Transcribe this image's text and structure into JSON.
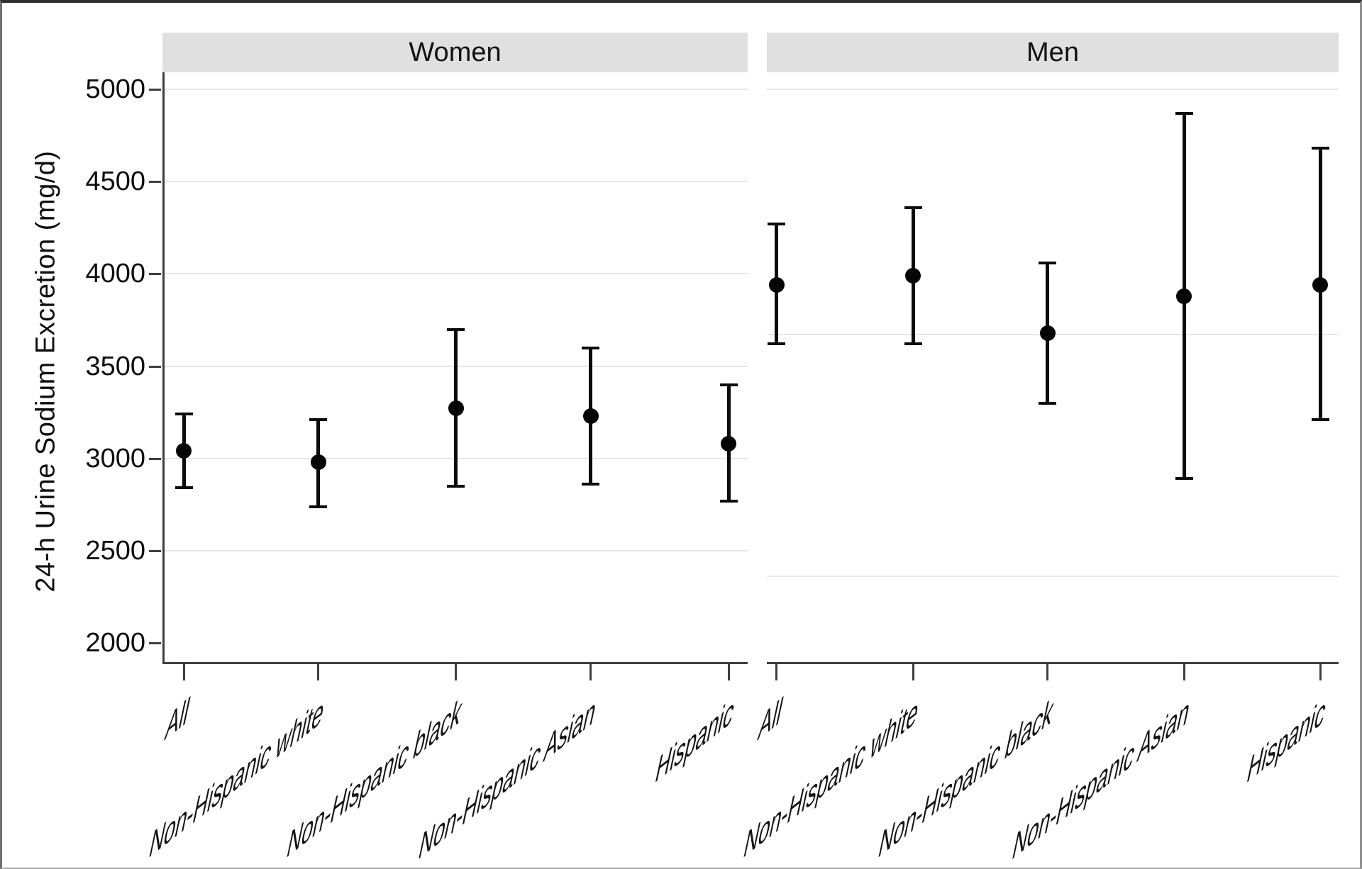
{
  "chart_data": {
    "type": "scatter",
    "subtype": "point-estimates-with-95ci-error-bars",
    "title": "",
    "xlabel": "",
    "ylabel": "24-h Urine Sodium Excretion (mg/d)",
    "ylim": [
      1900,
      5100
    ],
    "yticks": [
      5000,
      4500,
      4000,
      3500,
      3000,
      2500,
      2000
    ],
    "grid": "horizontal light gray lines",
    "legend": "none",
    "categories": [
      "All",
      "Non-Hispanic white",
      "Non-Hispanic black",
      "Non-Hispanic Asian",
      "Hispanic"
    ],
    "panels": [
      {
        "label": "Women",
        "gridlines": [
          5000,
          4500,
          4000,
          3500,
          3000,
          2500
        ],
        "series": [
          {
            "category": "All",
            "estimate": 3040,
            "ci_lower": 2840,
            "ci_upper": 3240
          },
          {
            "category": "Non-Hispanic white",
            "estimate": 2980,
            "ci_lower": 2740,
            "ci_upper": 3210
          },
          {
            "category": "Non-Hispanic black",
            "estimate": 3270,
            "ci_lower": 2850,
            "ci_upper": 3700
          },
          {
            "category": "Non-Hispanic Asian",
            "estimate": 3230,
            "ci_lower": 2860,
            "ci_upper": 3600
          },
          {
            "category": "Hispanic",
            "estimate": 3080,
            "ci_lower": 2770,
            "ci_upper": 3400
          }
        ]
      },
      {
        "label": "Men",
        "gridlines": [
          5000,
          3670,
          2360
        ],
        "series": [
          {
            "category": "All",
            "estimate": 3940,
            "ci_lower": 3620,
            "ci_upper": 4270
          },
          {
            "category": "Non-Hispanic white",
            "estimate": 3990,
            "ci_lower": 3620,
            "ci_upper": 4360
          },
          {
            "category": "Non-Hispanic black",
            "estimate": 3680,
            "ci_lower": 3300,
            "ci_upper": 4060
          },
          {
            "category": "Non-Hispanic Asian",
            "estimate": 3880,
            "ci_lower": 2890,
            "ci_upper": 4870
          },
          {
            "category": "Hispanic",
            "estimate": 3940,
            "ci_lower": 3210,
            "ci_upper": 4680
          }
        ]
      }
    ],
    "marker": {
      "shape": "filled-circle",
      "color": "#000000"
    },
    "error_bar_color": "#000000",
    "panel_header_bg": "#e0e0e0",
    "axis_color": "#3f3f3f",
    "gridline_color": "#e7e7e7"
  }
}
